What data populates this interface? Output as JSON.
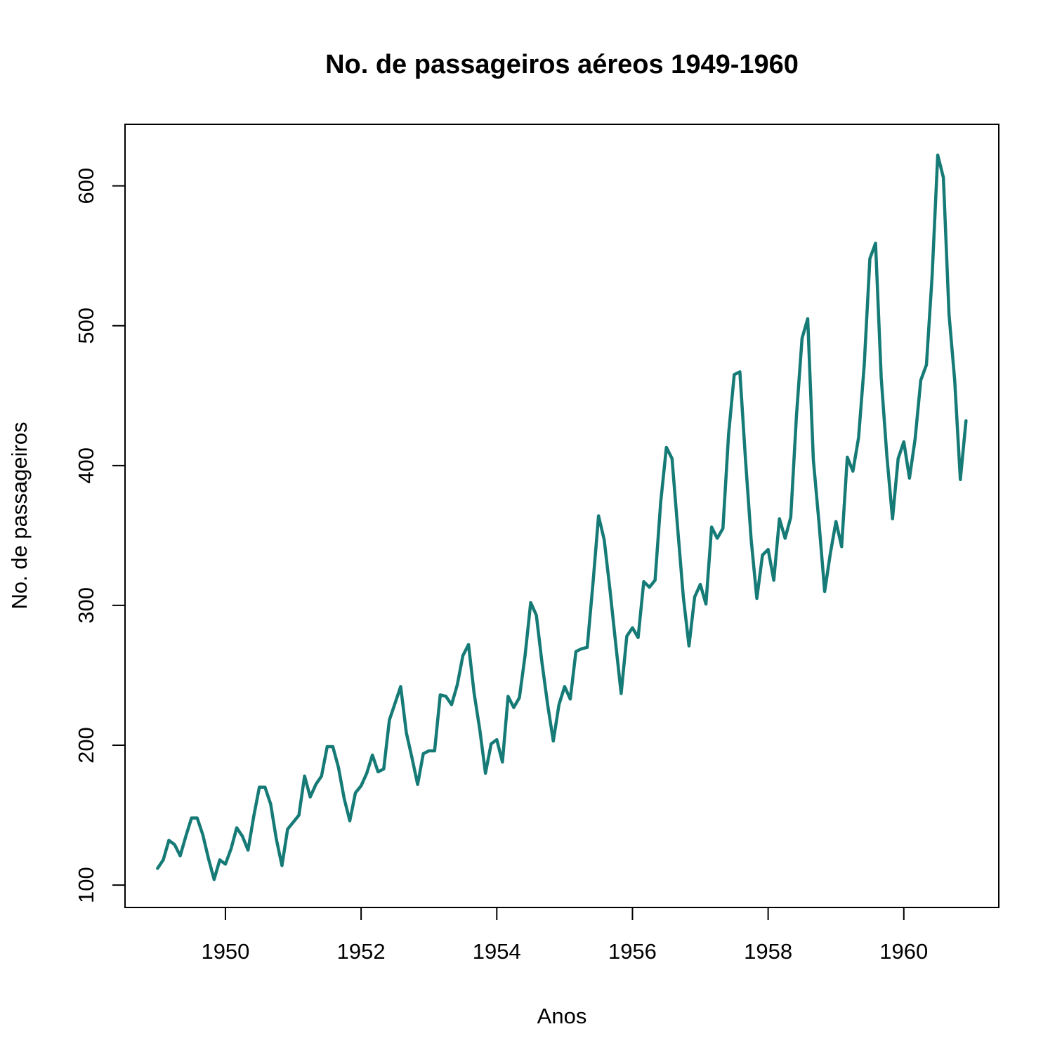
{
  "chart_data": {
    "type": "line",
    "title": "No. de passageiros aéreos 1949-1960",
    "xlabel": "Anos",
    "ylabel": "No. de passageiros",
    "xlim": [
      1948.52,
      1961.4
    ],
    "ylim": [
      84.0,
      644.0
    ],
    "x_ticks": [
      1950,
      1952,
      1954,
      1956,
      1958,
      1960
    ],
    "y_ticks": [
      100,
      200,
      300,
      400,
      500,
      600
    ],
    "grid": false,
    "color": "#167B76",
    "x_start": 1949.0,
    "x_step_months": 1,
    "series": [
      {
        "values": [
          112,
          118,
          132,
          129,
          121,
          135,
          148,
          148,
          136,
          119,
          104,
          118,
          115,
          126,
          141,
          135,
          125,
          149,
          170,
          170,
          158,
          133,
          114,
          140,
          145,
          150,
          178,
          163,
          172,
          178,
          199,
          199,
          184,
          162,
          146,
          166,
          171,
          180,
          193,
          181,
          183,
          218,
          230,
          242,
          209,
          191,
          172,
          194,
          196,
          196,
          236,
          235,
          229,
          243,
          264,
          272,
          237,
          211,
          180,
          201,
          204,
          188,
          235,
          227,
          234,
          264,
          302,
          293,
          259,
          229,
          203,
          229,
          242,
          233,
          267,
          269,
          270,
          315,
          364,
          347,
          312,
          274,
          237,
          278,
          284,
          277,
          317,
          313,
          318,
          374,
          413,
          405,
          355,
          306,
          271,
          306,
          315,
          301,
          356,
          348,
          355,
          422,
          465,
          467,
          404,
          347,
          305,
          336,
          340,
          318,
          362,
          348,
          363,
          435,
          491,
          505,
          404,
          359,
          310,
          337,
          360,
          342,
          406,
          396,
          420,
          472,
          548,
          559,
          463,
          407,
          362,
          405,
          417,
          391,
          419,
          461,
          472,
          535,
          622,
          606,
          508,
          461,
          390,
          432
        ]
      }
    ]
  }
}
